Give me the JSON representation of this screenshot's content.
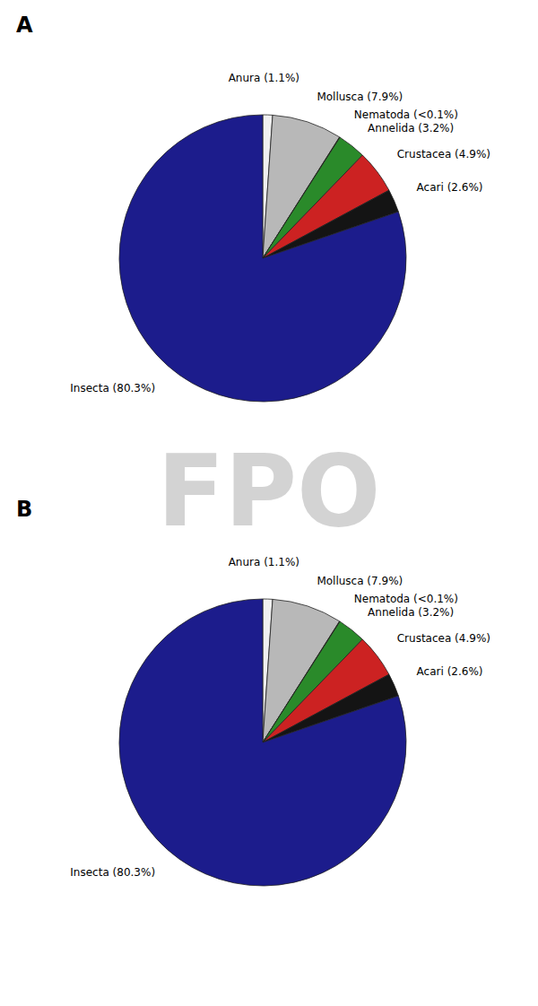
{
  "chart_data": [
    {
      "type": "pie",
      "title": "A",
      "categories": [
        "Anura (1.1%)",
        "Mollusca (7.9%)",
        "Nematoda (<0.1%)",
        "Annelida (3.2%)",
        "Crustacea (4.9%)",
        "Acari (2.6%)",
        "Insecta (80.3%)"
      ],
      "values": [
        1.1,
        7.9,
        0.05,
        3.2,
        4.9,
        2.6,
        80.3
      ],
      "colors": [
        "#f0f0f0",
        "#b8b8b8",
        "#808000",
        "#2a8a2a",
        "#cc2222",
        "#141414",
        "#1c1c8c"
      ],
      "annotations": [
        "FPO"
      ]
    },
    {
      "type": "pie",
      "title": "B",
      "categories": [
        "Anura (1.1%)",
        "Mollusca (7.9%)",
        "Nematoda (<0.1%)",
        "Annelida (3.2%)",
        "Crustacea (4.9%)",
        "Acari (2.6%)",
        "Insecta (80.3%)"
      ],
      "values": [
        1.1,
        7.9,
        0.05,
        3.2,
        4.9,
        2.6,
        80.3
      ],
      "colors": [
        "#f0f0f0",
        "#b8b8b8",
        "#808000",
        "#2a8a2a",
        "#cc2222",
        "#141414",
        "#1c1c8c"
      ]
    }
  ]
}
